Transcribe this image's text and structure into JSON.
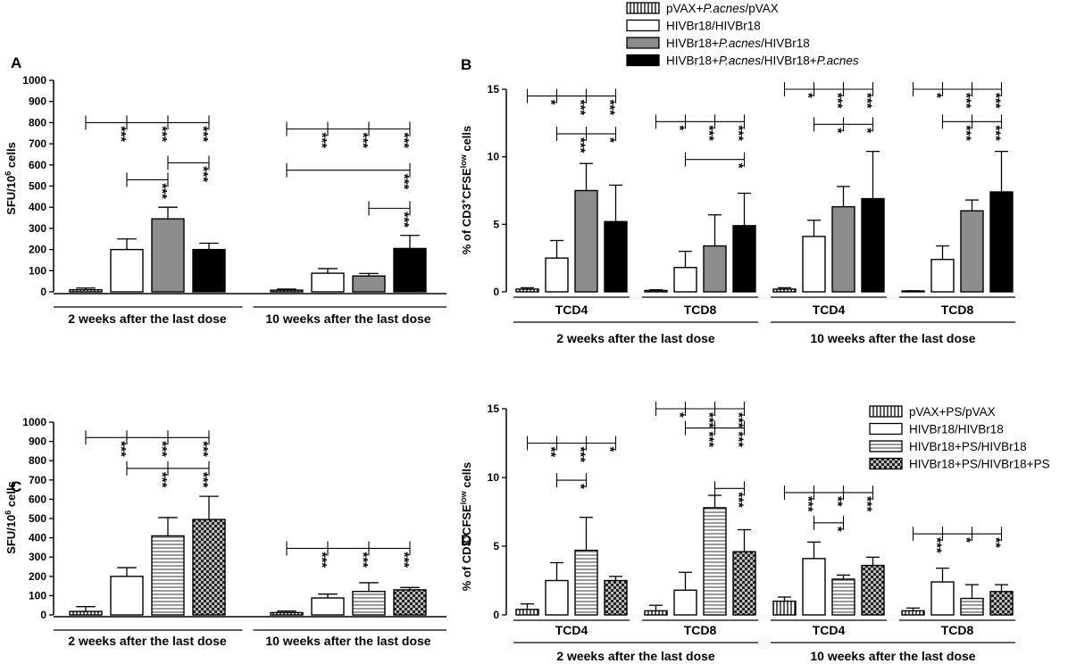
{
  "legend_top": [
    {
      "pre": "pVAX+",
      "it": "P.acnes",
      "post": "/pVAX",
      "pattern": "vstripe"
    },
    {
      "pre": "HIVBr18/HIVBr18",
      "it": "",
      "post": "",
      "pattern": "white"
    },
    {
      "pre": "HIVBr18+",
      "it": "P.acnes",
      "post": "/HIVBr18",
      "pattern": "gray"
    },
    {
      "pre": "HIVBr18+",
      "it": "P.acnes",
      "post": "/HIVBr18+",
      "it2": "P.acnes",
      "pattern": "black"
    }
  ],
  "legend_bottom": [
    {
      "pre": "pVAX+PS/pVAX",
      "pattern": "vstripe"
    },
    {
      "pre": "HIVBr18/HIVBr18",
      "pattern": "white"
    },
    {
      "pre": "HIVBr18+PS/HIVBr18",
      "pattern": "hstripe"
    },
    {
      "pre": "HIVBr18+PS/HIVBr18+PS",
      "pattern": "check"
    }
  ],
  "chart_data": [
    {
      "panel": "A",
      "type": "bar",
      "ylabel": "SFU/10^6 cells",
      "ylim": [
        0,
        1000
      ],
      "yticks": [
        "0",
        "100",
        "200",
        "300",
        "400",
        "500",
        "600",
        "700",
        "800",
        "900",
        "1000"
      ],
      "groups": [
        {
          "label": "2 weeks after the last dose",
          "patterns": [
            "vstripe",
            "white",
            "gray",
            "black"
          ],
          "values": [
            10,
            200,
            345,
            200
          ],
          "errors": [
            8,
            50,
            55,
            30
          ]
        },
        {
          "label": "10 weeks after the last dose",
          "patterns": [
            "vstripe",
            "white",
            "gray",
            "black"
          ],
          "values": [
            8,
            88,
            75,
            205
          ],
          "errors": [
            5,
            22,
            12,
            62
          ]
        }
      ],
      "significance": [
        {
          "group": 0,
          "from": 0,
          "to": 3,
          "level": 800,
          "stars": [
            "***",
            "***",
            "***"
          ],
          "at": [
            1,
            2,
            3
          ]
        },
        {
          "group": 0,
          "from": 2,
          "to": 3,
          "level": 610,
          "stars": [
            "***"
          ],
          "at": [
            3
          ]
        },
        {
          "group": 0,
          "from": 1,
          "to": 2,
          "level": 530,
          "stars": [
            "***"
          ],
          "at": [
            2
          ]
        },
        {
          "group": 1,
          "from": 0,
          "to": 3,
          "level": 770,
          "stars": [
            "***",
            "***",
            "***"
          ],
          "at": [
            1,
            2,
            3
          ]
        },
        {
          "group": 1,
          "from": 0,
          "to": 3,
          "level": 575,
          "stars": [
            "***"
          ],
          "at": [
            3
          ]
        },
        {
          "group": 1,
          "from": 2,
          "to": 3,
          "level": 395,
          "stars": [
            "***"
          ],
          "at": [
            3
          ]
        }
      ]
    },
    {
      "panel": "B",
      "type": "bar",
      "ylabel": "% of CD3+CFSElow cells",
      "ylim": [
        0,
        15
      ],
      "yticks": [
        "0",
        "5",
        "10",
        "15"
      ],
      "subgroups": [
        "TCD4",
        "TCD8",
        "TCD4",
        "TCD8"
      ],
      "supergroups": [
        "2 weeks after the last dose",
        "10 weeks after the last dose"
      ],
      "groups": [
        {
          "label": "TCD4",
          "patterns": [
            "vstripe",
            "white",
            "gray",
            "black"
          ],
          "values": [
            0.2,
            2.5,
            7.5,
            5.2
          ],
          "errors": [
            0.1,
            1.3,
            2.0,
            2.7
          ]
        },
        {
          "label": "TCD8",
          "patterns": [
            "vstripe",
            "white",
            "gray",
            "black"
          ],
          "values": [
            0.1,
            1.8,
            3.4,
            4.9
          ],
          "errors": [
            0.05,
            1.2,
            2.3,
            2.4
          ]
        },
        {
          "label": "TCD4",
          "patterns": [
            "vstripe",
            "white",
            "gray",
            "black"
          ],
          "values": [
            0.2,
            4.1,
            6.3,
            6.9
          ],
          "errors": [
            0.1,
            1.2,
            1.5,
            3.5
          ]
        },
        {
          "label": "TCD8",
          "patterns": [
            "vstripe",
            "white",
            "gray",
            "black"
          ],
          "values": [
            0.05,
            2.4,
            6.0,
            7.4
          ],
          "errors": [
            0.03,
            1.0,
            0.8,
            3.0
          ]
        }
      ],
      "significance": [
        {
          "group": 0,
          "from": 0,
          "to": 3,
          "level": 14.5,
          "stars": [
            "*",
            "***",
            "***"
          ],
          "at": [
            1,
            2,
            3
          ]
        },
        {
          "group": 0,
          "from": 1,
          "to": 3,
          "level": 11.7,
          "stars": [
            "***",
            "*"
          ],
          "at": [
            2,
            3
          ]
        },
        {
          "group": 1,
          "from": 0,
          "to": 3,
          "level": 12.6,
          "stars": [
            "*",
            "***",
            "***"
          ],
          "at": [
            1,
            2,
            3
          ]
        },
        {
          "group": 1,
          "from": 1,
          "to": 3,
          "level": 9.8,
          "stars": [
            "*"
          ],
          "at": [
            3
          ]
        },
        {
          "group": 2,
          "from": 0,
          "to": 3,
          "level": 15.0,
          "stars": [
            "*",
            "***",
            "***"
          ],
          "at": [
            1,
            2,
            3
          ]
        },
        {
          "group": 2,
          "from": 1,
          "to": 3,
          "level": 12.4,
          "stars": [
            "*",
            "*"
          ],
          "at": [
            2,
            3
          ]
        },
        {
          "group": 3,
          "from": 0,
          "to": 3,
          "level": 15.0,
          "stars": [
            "*",
            "***",
            "***"
          ],
          "at": [
            1,
            2,
            3
          ]
        },
        {
          "group": 3,
          "from": 1,
          "to": 3,
          "level": 12.6,
          "stars": [
            "***",
            "***"
          ],
          "at": [
            2,
            3
          ]
        }
      ]
    },
    {
      "panel": "C",
      "type": "bar",
      "ylabel": "SFU/10^6 cells",
      "ylim": [
        0,
        1000
      ],
      "yticks": [
        "0",
        "100",
        "200",
        "300",
        "400",
        "500",
        "600",
        "700",
        "800",
        "900",
        "1000"
      ],
      "groups": [
        {
          "label": "2 weeks after the last dose",
          "patterns": [
            "vstripe",
            "white",
            "hstripe",
            "check"
          ],
          "values": [
            18,
            200,
            410,
            495
          ],
          "errors": [
            25,
            45,
            95,
            120
          ]
        },
        {
          "label": "10 weeks after the last dose",
          "patterns": [
            "vstripe",
            "white",
            "hstripe",
            "check"
          ],
          "values": [
            12,
            88,
            122,
            130
          ],
          "errors": [
            8,
            20,
            45,
            12
          ]
        }
      ],
      "significance": [
        {
          "group": 0,
          "from": 0,
          "to": 3,
          "level": 920,
          "stars": [
            "***",
            "***",
            "***"
          ],
          "at": [
            1,
            2,
            3
          ]
        },
        {
          "group": 0,
          "from": 1,
          "to": 3,
          "level": 760,
          "stars": [
            "***",
            "***"
          ],
          "at": [
            2,
            3
          ]
        },
        {
          "group": 1,
          "from": 0,
          "to": 3,
          "level": 345,
          "stars": [
            "***",
            "***",
            "***"
          ],
          "at": [
            1,
            2,
            3
          ]
        }
      ]
    },
    {
      "panel": "D",
      "type": "bar",
      "ylabel": "% of CD3+CFSElow cells",
      "ylim": [
        0,
        15
      ],
      "yticks": [
        "0",
        "5",
        "10",
        "15"
      ],
      "subgroups": [
        "TCD4",
        "TCD8",
        "TCD4",
        "TCD8"
      ],
      "supergroups": [
        "2 weeks after the last dose",
        "10 weeks after the last dose"
      ],
      "groups": [
        {
          "label": "TCD4",
          "patterns": [
            "vstripe",
            "white",
            "hstripe",
            "check"
          ],
          "values": [
            0.4,
            2.5,
            4.7,
            2.5
          ],
          "errors": [
            0.4,
            1.3,
            2.4,
            0.3
          ]
        },
        {
          "label": "TCD8",
          "patterns": [
            "vstripe",
            "white",
            "hstripe",
            "check"
          ],
          "values": [
            0.3,
            1.8,
            7.8,
            4.6
          ],
          "errors": [
            0.4,
            1.3,
            0.9,
            1.6
          ]
        },
        {
          "label": "TCD4",
          "patterns": [
            "vstripe",
            "white",
            "hstripe",
            "check"
          ],
          "values": [
            1.0,
            4.1,
            2.6,
            3.6
          ],
          "errors": [
            0.3,
            1.2,
            0.3,
            0.6
          ]
        },
        {
          "label": "TCD8",
          "patterns": [
            "vstripe",
            "white",
            "hstripe",
            "check"
          ],
          "values": [
            0.3,
            2.4,
            1.2,
            1.7
          ],
          "errors": [
            0.2,
            1.0,
            1.0,
            0.5
          ]
        }
      ],
      "significance": [
        {
          "group": 0,
          "from": 0,
          "to": 3,
          "level": 12.5,
          "stars": [
            "**",
            "***",
            "*"
          ],
          "at": [
            1,
            2,
            3
          ]
        },
        {
          "group": 0,
          "from": 1,
          "to": 2,
          "level": 9.8,
          "stars": [
            "*"
          ],
          "at": [
            2
          ]
        },
        {
          "group": 1,
          "from": 0,
          "to": 3,
          "level": 15.0,
          "stars": [
            "*",
            "***",
            "***"
          ],
          "at": [
            1,
            2,
            3
          ]
        },
        {
          "group": 1,
          "from": 1,
          "to": 3,
          "level": 13.6,
          "stars": [
            "***",
            "***"
          ],
          "at": [
            2,
            3
          ]
        },
        {
          "group": 1,
          "from": 2,
          "to": 3,
          "level": 9.2,
          "stars": [
            "***"
          ],
          "at": [
            3
          ]
        },
        {
          "group": 2,
          "from": 0,
          "to": 3,
          "level": 8.9,
          "stars": [
            "***",
            "**",
            "***"
          ],
          "at": [
            1,
            2,
            3
          ]
        },
        {
          "group": 2,
          "from": 1,
          "to": 2,
          "level": 6.7,
          "stars": [
            "*"
          ],
          "at": [
            2
          ]
        },
        {
          "group": 3,
          "from": 0,
          "to": 3,
          "level": 5.9,
          "stars": [
            "***",
            "*",
            "**"
          ],
          "at": [
            1,
            2,
            3
          ]
        }
      ]
    }
  ]
}
